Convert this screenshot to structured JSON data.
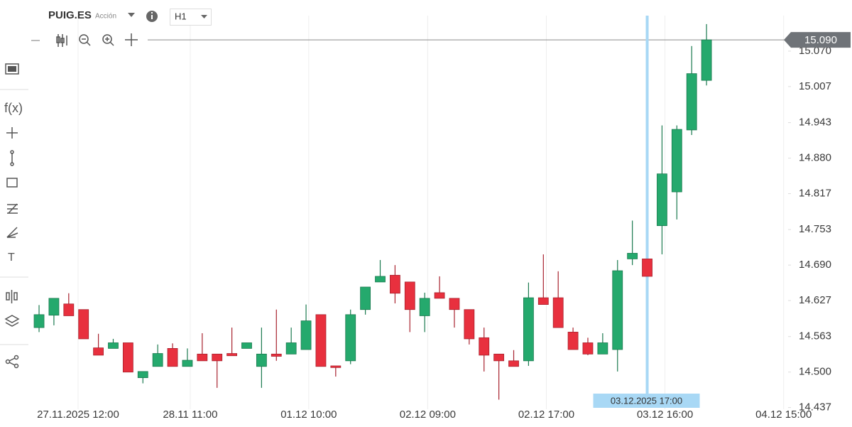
{
  "header": {
    "symbol": "PUIG.ES",
    "asset_type": "Acción",
    "timeframe": "H1"
  },
  "side_tools": {
    "function": "f(x)",
    "text": "T"
  },
  "chart_data": {
    "type": "candlestick",
    "x": [
      0,
      1,
      2,
      3,
      4,
      5,
      6,
      7,
      8,
      9,
      10,
      11,
      12,
      13,
      14,
      15,
      16,
      17,
      18,
      19,
      20,
      21,
      22,
      23,
      24,
      25,
      26,
      27,
      28,
      29,
      30,
      31,
      32,
      33,
      34,
      35,
      36,
      37,
      38,
      39,
      40,
      41,
      42,
      43,
      44,
      45
    ],
    "open": [
      14.579,
      14.601,
      14.621,
      14.611,
      14.543,
      14.542,
      14.552,
      14.49,
      14.51,
      14.542,
      14.51,
      14.532,
      14.532,
      14.533,
      14.542,
      14.51,
      14.532,
      14.532,
      14.54,
      14.602,
      14.511,
      14.52,
      14.611,
      14.66,
      14.672,
      14.66,
      14.6,
      14.641,
      14.631,
      14.611,
      14.561,
      14.532,
      14.52,
      14.52,
      14.632,
      14.632,
      14.571,
      14.552,
      14.532,
      14.54,
      14.701,
      14.701,
      14.76,
      14.82,
      14.93,
      15.018
    ],
    "high": [
      14.619,
      14.631,
      14.64,
      14.611,
      14.568,
      14.559,
      14.552,
      14.501,
      14.549,
      14.551,
      14.542,
      14.569,
      14.532,
      14.579,
      14.552,
      14.579,
      14.611,
      14.579,
      14.62,
      14.602,
      14.511,
      14.611,
      14.651,
      14.699,
      14.69,
      14.66,
      14.641,
      14.67,
      14.631,
      14.611,
      14.579,
      14.532,
      14.539,
      14.659,
      14.709,
      14.679,
      14.579,
      14.561,
      14.569,
      14.699,
      14.769,
      14.701,
      14.938,
      14.938,
      15.079,
      15.118
    ],
    "low": [
      14.571,
      14.583,
      14.6,
      14.559,
      14.53,
      14.542,
      14.5,
      14.48,
      14.51,
      14.51,
      14.51,
      14.52,
      14.472,
      14.529,
      14.542,
      14.472,
      14.52,
      14.532,
      14.54,
      14.51,
      14.492,
      14.514,
      14.602,
      14.66,
      14.622,
      14.571,
      14.571,
      14.631,
      14.579,
      14.549,
      14.501,
      14.451,
      14.51,
      14.511,
      14.62,
      14.579,
      14.54,
      14.53,
      14.532,
      14.501,
      14.69,
      14.67,
      14.709,
      14.771,
      14.921,
      15.009
    ],
    "close": [
      14.602,
      14.631,
      14.6,
      14.559,
      14.53,
      14.552,
      14.5,
      14.501,
      14.533,
      14.51,
      14.521,
      14.52,
      14.52,
      14.529,
      14.552,
      14.532,
      14.528,
      14.552,
      14.591,
      14.51,
      14.508,
      14.602,
      14.651,
      14.67,
      14.64,
      14.611,
      14.631,
      14.631,
      14.611,
      14.559,
      14.53,
      14.52,
      14.51,
      14.632,
      14.62,
      14.579,
      14.54,
      14.532,
      14.552,
      14.68,
      14.711,
      14.67,
      14.852,
      14.931,
      15.03,
      15.09
    ],
    "up_color": "#25a96d",
    "down_color": "#e8303e",
    "xlim": [
      -0.48,
      50.5
    ],
    "xticks": [
      {
        "value": 2.63,
        "label": "27.11.2025 12:00"
      },
      {
        "value": 10.19,
        "label": "28.11 11:00"
      },
      {
        "value": 18.18,
        "label": "01.12 10:00"
      },
      {
        "value": 26.2,
        "label": "02.12 09:00"
      },
      {
        "value": 34.2,
        "label": "02.12 17:00"
      },
      {
        "value": 42.2,
        "label": "03.12 16:00"
      },
      {
        "value": 50.2,
        "label": "04.12 15:00"
      }
    ],
    "ylim": [
      14.434,
      15.133
    ],
    "yticks": [
      {
        "value": 14.437,
        "label": "14.437"
      },
      {
        "value": 14.5,
        "label": "14.500"
      },
      {
        "value": 14.563,
        "label": "14.563"
      },
      {
        "value": 14.627,
        "label": "14.627"
      },
      {
        "value": 14.69,
        "label": "14.690"
      },
      {
        "value": 14.753,
        "label": "14.753"
      },
      {
        "value": 14.817,
        "label": "14.817"
      },
      {
        "value": 14.88,
        "label": "14.880"
      },
      {
        "value": 14.943,
        "label": "14.943"
      },
      {
        "value": 15.007,
        "label": "15.007"
      },
      {
        "value": 15.07,
        "label": "15.070"
      }
    ],
    "last_price": {
      "value": 15.09,
      "label": "15.090"
    },
    "crosshair": {
      "x": 41,
      "label": "03.12.2025 17:00"
    },
    "grid": true
  }
}
